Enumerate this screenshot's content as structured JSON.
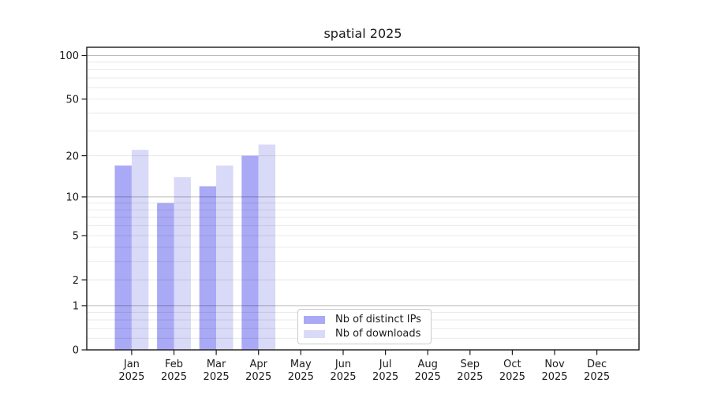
{
  "title": "spatial 2025",
  "chart_data": {
    "type": "bar",
    "x_categories": [
      {
        "month": "Jan",
        "year": "2025"
      },
      {
        "month": "Feb",
        "year": "2025"
      },
      {
        "month": "Mar",
        "year": "2025"
      },
      {
        "month": "Apr",
        "year": "2025"
      },
      {
        "month": "May",
        "year": "2025"
      },
      {
        "month": "Jun",
        "year": "2025"
      },
      {
        "month": "Jul",
        "year": "2025"
      },
      {
        "month": "Aug",
        "year": "2025"
      },
      {
        "month": "Sep",
        "year": "2025"
      },
      {
        "month": "Oct",
        "year": "2025"
      },
      {
        "month": "Nov",
        "year": "2025"
      },
      {
        "month": "Dec",
        "year": "2025"
      }
    ],
    "series": [
      {
        "name": "Nb of distinct IPs",
        "color": "#a9a9f5",
        "values": [
          17,
          9,
          12,
          20,
          0,
          0,
          0,
          0,
          0,
          0,
          0,
          0
        ]
      },
      {
        "name": "Nb of downloads",
        "color": "#d9d9f8",
        "values": [
          22,
          14,
          17,
          24,
          0,
          0,
          0,
          0,
          0,
          0,
          0,
          0
        ]
      }
    ],
    "y_axis": {
      "scale": "symlog (y = log1p(value))",
      "tick_values": [
        0,
        1,
        2,
        5,
        10,
        20,
        50,
        100
      ],
      "major_grid_values": [
        1,
        10,
        100
      ],
      "minor_grid_values": [
        0.2,
        0.4,
        0.6,
        0.8,
        2,
        3,
        4,
        5,
        6,
        7,
        8,
        9,
        20,
        30,
        40,
        50,
        60,
        70,
        80,
        90
      ],
      "range": [
        0,
        114
      ]
    },
    "grid": "major and minor horizontal gridlines",
    "legend_position": "bottom center, inside plot"
  },
  "legend": {
    "items": [
      {
        "label": "Nb of distinct IPs",
        "color": "#a9a9f5"
      },
      {
        "label": "Nb of downloads",
        "color": "#d9d9f8"
      }
    ]
  },
  "colors": {
    "background": "#ffffff",
    "bar_distinct_ips": "#a9a9f5",
    "bar_downloads": "#d9d9f8",
    "spine": "#1a1a1a",
    "major_grid": "#bababa",
    "minor_grid": "#e8e8e8",
    "text": "#1a1a1a",
    "legend_border": "#cbcbcb"
  }
}
